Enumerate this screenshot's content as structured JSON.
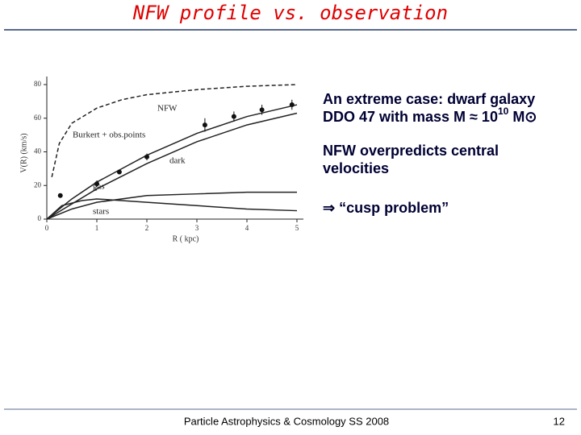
{
  "title": "NFW profile vs. observation",
  "bullets": [
    {
      "text": "An extreme case: dwarf galaxy DDO 47 with mass M ≈ 10",
      "sup": "10",
      "after": " M⊙"
    },
    {
      "text": "NFW overpredicts central velocities"
    },
    {
      "text": "⇒ “cusp problem”"
    }
  ],
  "footer": "Particle Astrophysics & Cosmology SS 2008",
  "page_number": "12",
  "chart_data": {
    "type": "line",
    "x_label": "R ( kpc)",
    "y_label": "V(R) (km/s)",
    "xlim": [
      0,
      5
    ],
    "xticks": [
      0,
      1,
      2,
      3,
      4,
      5
    ],
    "ylim": [
      0,
      80
    ],
    "yticks": [
      0,
      20,
      40,
      60,
      80
    ],
    "series": [
      {
        "name": "NFW",
        "dashed": true,
        "x": [
          0.1,
          0.25,
          0.5,
          1,
          1.5,
          2,
          3,
          4,
          5
        ],
        "values": [
          25,
          45,
          57,
          66,
          71,
          74,
          77,
          79,
          80
        ]
      },
      {
        "name": "Burkert + obs.points",
        "x": [
          0,
          0.5,
          1,
          1.5,
          2,
          3,
          4,
          5
        ],
        "values": [
          0,
          12,
          22,
          30,
          38,
          51,
          61,
          68
        ]
      },
      {
        "name": "dark",
        "x": [
          0,
          1,
          2,
          3,
          4,
          5
        ],
        "values": [
          0,
          18,
          33,
          46,
          56,
          63
        ]
      },
      {
        "name": "gas",
        "x": [
          0,
          0.5,
          1,
          2,
          3,
          4,
          5
        ],
        "values": [
          0,
          6,
          10,
          14,
          15,
          16,
          16
        ]
      },
      {
        "name": "stars",
        "x": [
          0,
          0.3,
          0.7,
          1,
          2,
          3,
          4,
          5
        ],
        "values": [
          0,
          8,
          11,
          12,
          10,
          8,
          6,
          5
        ]
      }
    ],
    "points": {
      "x": [
        0.27,
        1.0,
        1.45,
        2.0,
        3.16,
        3.74,
        4.3,
        4.9
      ],
      "values": [
        14,
        21,
        28,
        37,
        56,
        61,
        65,
        68
      ],
      "errors": [
        1,
        2,
        1,
        2,
        4,
        3,
        3,
        3
      ]
    }
  }
}
